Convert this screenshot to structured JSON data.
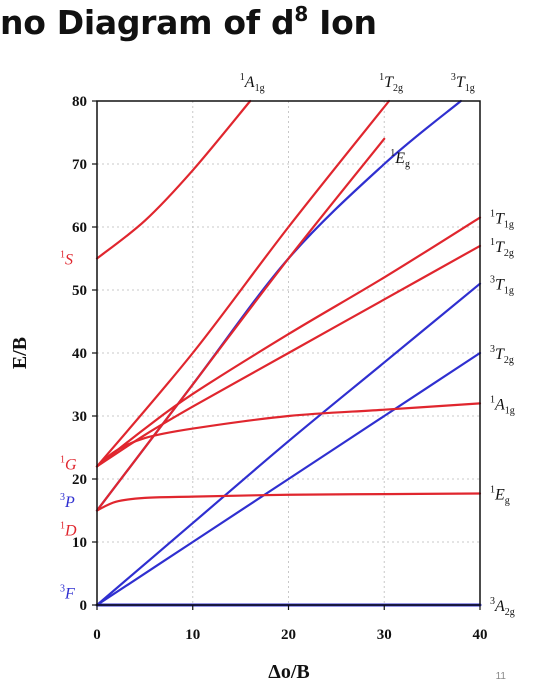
{
  "slide": {
    "title_before": "no Diagram of d",
    "title_sup": "8",
    "title_after": " Ion",
    "page_number": "11"
  },
  "colors": {
    "spin_triplet": "#2f2fd0",
    "spin_singlet": "#e0262e",
    "grid": "#c8c8c8"
  },
  "chart_data": {
    "type": "line",
    "title": "",
    "xlabel": "Δo/B",
    "ylabel": "E/B",
    "xlim": [
      0,
      40
    ],
    "ylim": [
      0,
      80
    ],
    "xticks": [
      "0",
      "10",
      "20",
      "30",
      "40"
    ],
    "yticks": [
      "0",
      "10",
      "20",
      "30",
      "40",
      "50",
      "60",
      "70",
      "80"
    ],
    "grid": true,
    "free_ion_terms": [
      {
        "sup": "3",
        "letter": "F",
        "energy": 2,
        "color": "blue"
      },
      {
        "sup": "3",
        "letter": "P",
        "energy": 16.5,
        "color": "blue"
      },
      {
        "sup": "1",
        "letter": "D",
        "energy": 12,
        "color": "red"
      },
      {
        "sup": "1",
        "letter": "G",
        "energy": 22.5,
        "color": "red"
      },
      {
        "sup": "1",
        "letter": "S",
        "energy": 55,
        "color": "red"
      }
    ],
    "series": [
      {
        "sup": "3",
        "base": "A",
        "sub": "2g",
        "color": "blue",
        "x": [
          0,
          40
        ],
        "y": [
          0,
          0
        ],
        "label_pos": "right"
      },
      {
        "sup": "3",
        "base": "T",
        "sub": "2g",
        "color": "blue",
        "x": [
          0,
          10,
          20,
          30,
          40
        ],
        "y": [
          0,
          10,
          20,
          30,
          40
        ],
        "label_pos": "right"
      },
      {
        "sup": "3",
        "base": "T",
        "sub": "1g",
        "color": "blue",
        "x": [
          0,
          10,
          20,
          30,
          40
        ],
        "y": [
          0,
          13,
          26,
          38.5,
          51
        ],
        "label_pos": "right"
      },
      {
        "sup": "3",
        "base": "T",
        "sub": "1g",
        "color": "blue",
        "x": [
          0,
          10,
          20,
          30,
          38
        ],
        "y": [
          15,
          35,
          55,
          70,
          80
        ],
        "label_pos": "top"
      },
      {
        "sup": "1",
        "base": "E",
        "sub": "g",
        "color": "red",
        "x": [
          0,
          2,
          5,
          10,
          20,
          30,
          40
        ],
        "y": [
          15,
          16.4,
          17,
          17.2,
          17.5,
          17.6,
          17.7
        ],
        "label_pos": "right"
      },
      {
        "sup": "1",
        "base": "A",
        "sub": "1g",
        "color": "red",
        "x": [
          0,
          2,
          5,
          10,
          20,
          30,
          40
        ],
        "y": [
          22,
          24.5,
          26.5,
          28,
          30,
          31,
          32
        ],
        "label_pos": "right"
      },
      {
        "sup": "1",
        "base": "T",
        "sub": "2g",
        "color": "red",
        "x": [
          0,
          5,
          10,
          20,
          30,
          40
        ],
        "y": [
          22,
          27,
          31.5,
          40,
          48.5,
          57
        ],
        "label_pos": "right"
      },
      {
        "sup": "1",
        "base": "T",
        "sub": "1g",
        "color": "red",
        "x": [
          0,
          5,
          10,
          20,
          30,
          40
        ],
        "y": [
          22,
          28,
          33.5,
          43,
          52,
          61.5
        ],
        "label_pos": "right"
      },
      {
        "sup": "1",
        "base": "T",
        "sub": "2g",
        "color": "red",
        "x": [
          0,
          10,
          20,
          30.5
        ],
        "y": [
          22,
          40,
          60,
          80
        ],
        "label_pos": "top"
      },
      {
        "sup": "1",
        "base": "E",
        "sub": "g",
        "color": "red",
        "x": [
          0,
          10,
          20,
          30
        ],
        "y": [
          15,
          35,
          55,
          74
        ],
        "label_pos": "inside"
      },
      {
        "sup": "1",
        "base": "A",
        "sub": "1g",
        "color": "red",
        "x": [
          0,
          5,
          10,
          16
        ],
        "y": [
          55,
          61,
          69,
          80
        ],
        "label_pos": "top"
      }
    ]
  }
}
